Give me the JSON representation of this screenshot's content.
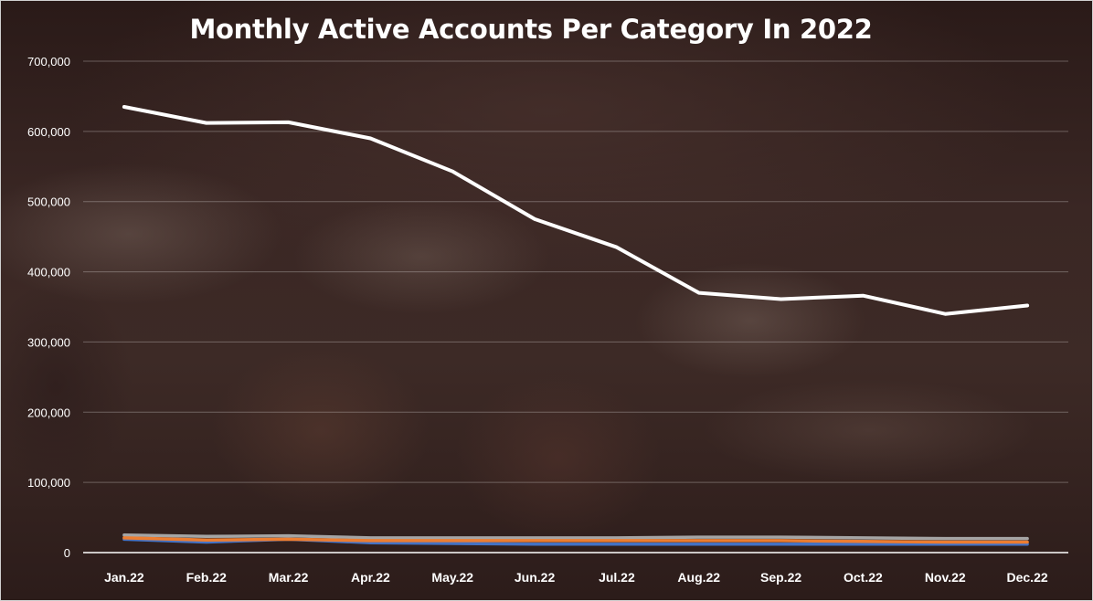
{
  "chart_data": {
    "type": "line",
    "title": "Monthly Active Accounts Per Category In 2022",
    "xlabel": "",
    "ylabel": "",
    "categories": [
      "Jan.22",
      "Feb.22",
      "Mar.22",
      "Apr.22",
      "May.22",
      "Jun.22",
      "Jul.22",
      "Aug.22",
      "Sep.22",
      "Oct.22",
      "Nov.22",
      "Dec.22"
    ],
    "ylim": [
      0,
      700000
    ],
    "yticks": [
      "0",
      "100,000",
      "200,000",
      "300,000",
      "400,000",
      "500,000",
      "600,000",
      "700,000"
    ],
    "grid": true,
    "legend": "none",
    "series": [
      {
        "color": "#ffffff",
        "values": [
          635000,
          612000,
          613000,
          590000,
          543000,
          475000,
          435000,
          370000,
          361000,
          366000,
          340000,
          352000
        ]
      },
      {
        "color": "#a5a5a5",
        "values": [
          25000,
          23000,
          24000,
          21000,
          21000,
          21000,
          21000,
          22000,
          22000,
          21000,
          20000,
          20000
        ]
      },
      {
        "color": "#4472c4",
        "values": [
          19000,
          15000,
          19000,
          14000,
          13000,
          12000,
          12000,
          12000,
          12000,
          12000,
          12000,
          12000
        ]
      },
      {
        "color": "#ed7d31",
        "values": [
          21000,
          18000,
          19000,
          17000,
          17000,
          17000,
          17000,
          17000,
          17000,
          16000,
          15000,
          15000
        ]
      }
    ]
  }
}
